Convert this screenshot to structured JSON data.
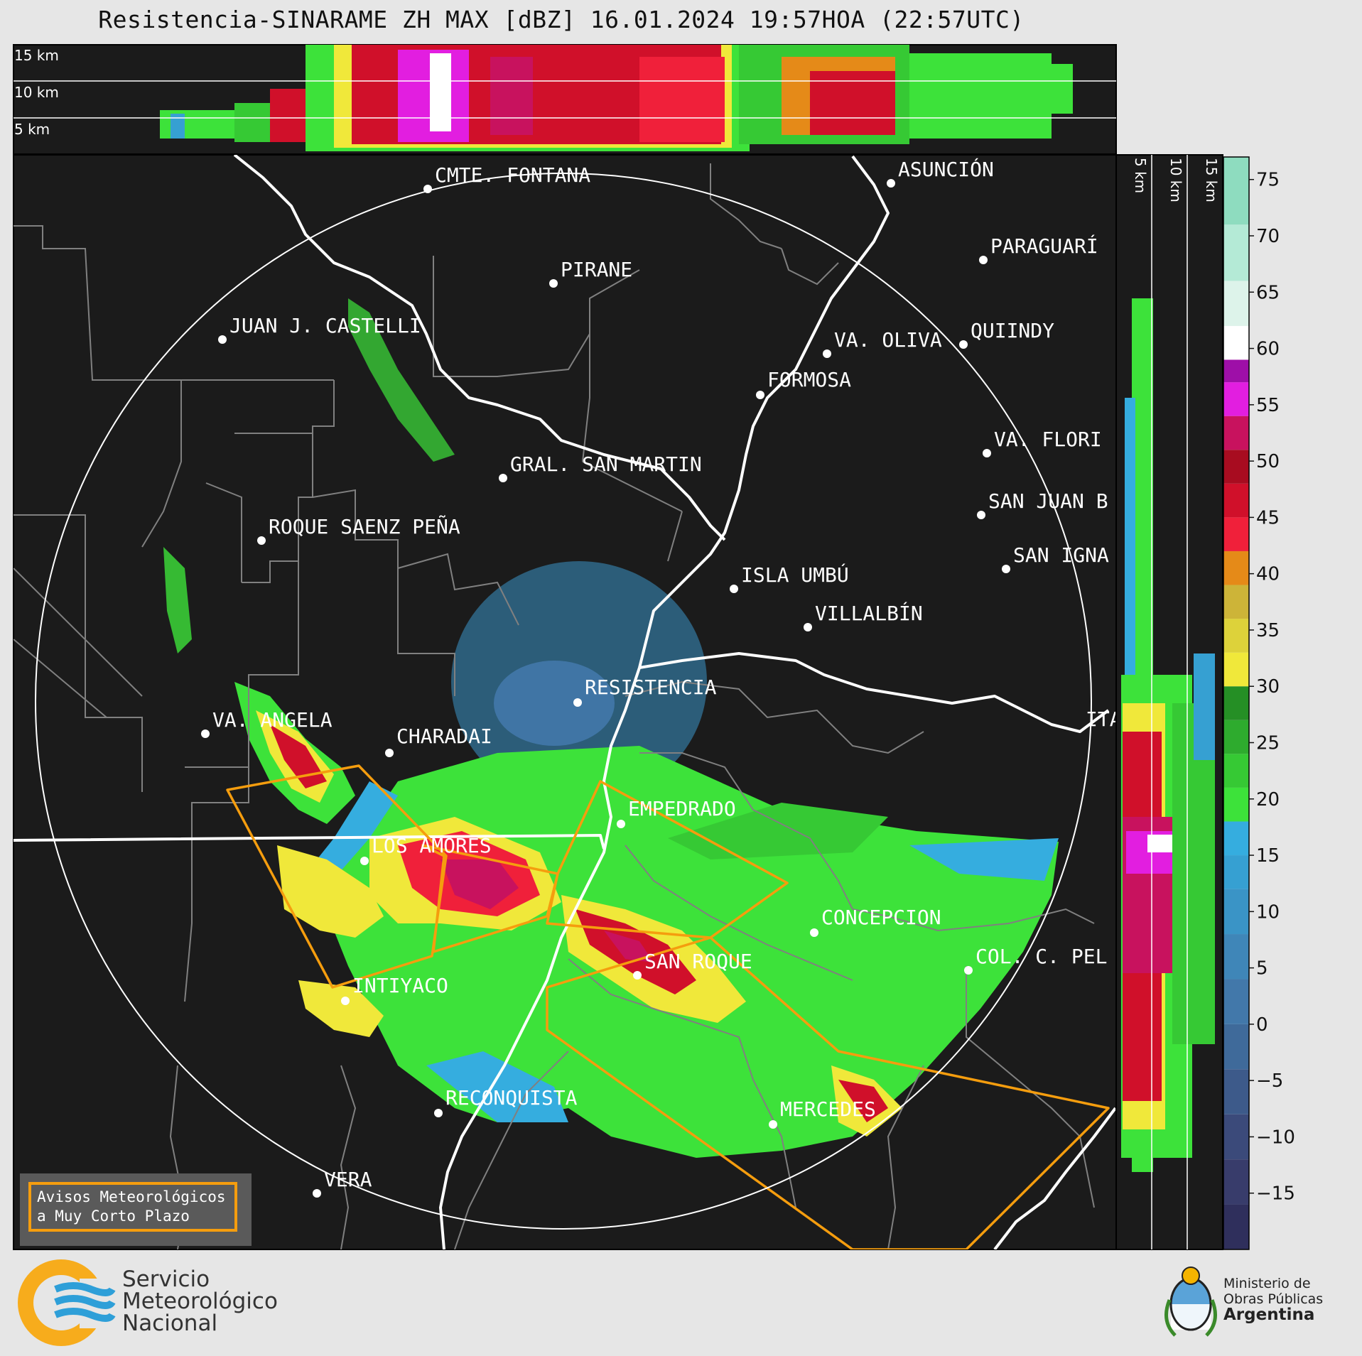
{
  "title": "Resistencia-SINARAME ZH MAX [dBZ] 16.01.2024 19:57HOA (22:57UTC)",
  "top_panel": {
    "altitude_labels": [
      "15 km",
      "10 km",
      "5 km"
    ]
  },
  "side_panel": {
    "altitude_labels": [
      "5 km",
      "10 km",
      "15 km"
    ]
  },
  "cities": [
    {
      "name": "CMTE. FONTANA"
    },
    {
      "name": "ASUNCIÓN"
    },
    {
      "name": "PARAGUARÍ"
    },
    {
      "name": "PIRANE"
    },
    {
      "name": "JUAN J. CASTELLI"
    },
    {
      "name": "VA. OLIVA"
    },
    {
      "name": "QUIINDY"
    },
    {
      "name": "FORMOSA"
    },
    {
      "name": "VA. FLORI"
    },
    {
      "name": "GRAL. SAN MARTIN"
    },
    {
      "name": "SAN JUAN B"
    },
    {
      "name": "ROQUE SAENZ PEÑA"
    },
    {
      "name": "SAN IGNA"
    },
    {
      "name": "ISLA UMBÚ"
    },
    {
      "name": "VILLALBÍN"
    },
    {
      "name": "RESISTENCIA"
    },
    {
      "name": "VA. ANGELA"
    },
    {
      "name": "CHARADAI"
    },
    {
      "name": "ITA"
    },
    {
      "name": "EMPEDRADO"
    },
    {
      "name": "LOS AMORES"
    },
    {
      "name": "CONCEPCION"
    },
    {
      "name": "SAN ROQUE"
    },
    {
      "name": "COL. C. PEL"
    },
    {
      "name": "INTIYACO"
    },
    {
      "name": "RECONQUISTA"
    },
    {
      "name": "MERCEDES"
    },
    {
      "name": "VERA"
    }
  ],
  "colorbar": {
    "ticks": [
      "75",
      "70",
      "65",
      "60",
      "55",
      "50",
      "45",
      "40",
      "35",
      "30",
      "25",
      "20",
      "15",
      "10",
      "5",
      "0",
      "−5",
      "−10",
      "−15"
    ],
    "range": [
      -20,
      77
    ],
    "bands": [
      {
        "from": -20,
        "to": -16,
        "color": "#2f2f5c"
      },
      {
        "from": -16,
        "to": -12,
        "color": "#383c6b"
      },
      {
        "from": -12,
        "to": -8,
        "color": "#3b4a7a"
      },
      {
        "from": -8,
        "to": -4,
        "color": "#3d5a8a"
      },
      {
        "from": -4,
        "to": 0,
        "color": "#3f6a9a"
      },
      {
        "from": 0,
        "to": 4,
        "color": "#4278aa"
      },
      {
        "from": 4,
        "to": 8,
        "color": "#3f86b8"
      },
      {
        "from": 8,
        "to": 12,
        "color": "#3a94c6"
      },
      {
        "from": 12,
        "to": 15,
        "color": "#36a0d2"
      },
      {
        "from": 15,
        "to": 18,
        "color": "#35addf"
      },
      {
        "from": 18,
        "to": 21,
        "color": "#3de23a"
      },
      {
        "from": 21,
        "to": 24,
        "color": "#36c934"
      },
      {
        "from": 24,
        "to": 27,
        "color": "#2eab2e"
      },
      {
        "from": 27,
        "to": 30,
        "color": "#258f25"
      },
      {
        "from": 30,
        "to": 33,
        "color": "#f0e83a"
      },
      {
        "from": 33,
        "to": 36,
        "color": "#ddd23a"
      },
      {
        "from": 36,
        "to": 39,
        "color": "#cdb438"
      },
      {
        "from": 39,
        "to": 42,
        "color": "#e58a18"
      },
      {
        "from": 42,
        "to": 45,
        "color": "#f0203a"
      },
      {
        "from": 45,
        "to": 48,
        "color": "#d0102a"
      },
      {
        "from": 48,
        "to": 51,
        "color": "#a80c20"
      },
      {
        "from": 51,
        "to": 54,
        "color": "#c8125e"
      },
      {
        "from": 54,
        "to": 57,
        "color": "#e21ee0"
      },
      {
        "from": 57,
        "to": 59,
        "color": "#9e0fa8"
      },
      {
        "from": 59,
        "to": 62,
        "color": "#ffffff"
      },
      {
        "from": 62,
        "to": 66,
        "color": "#ddf3ea"
      },
      {
        "from": 66,
        "to": 71,
        "color": "#b4ead6"
      },
      {
        "from": 71,
        "to": 77,
        "color": "#8edcbf"
      }
    ]
  },
  "warning_legend": {
    "line1": "Avisos Meteorológicos",
    "line2": "a Muy Corto Plazo"
  },
  "footer": {
    "smn_line1": "Servicio",
    "smn_line2": "Meteorológico",
    "smn_line3": "Nacional",
    "ministry_line1": "Ministerio de",
    "ministry_line2": "Obras Públicas",
    "ministry_line3": "Argentina"
  },
  "colors": {
    "warning": "#f59d0e",
    "panel_bg": "#1b1b1b",
    "borders": "#808080",
    "rivers": "#ffffff"
  }
}
